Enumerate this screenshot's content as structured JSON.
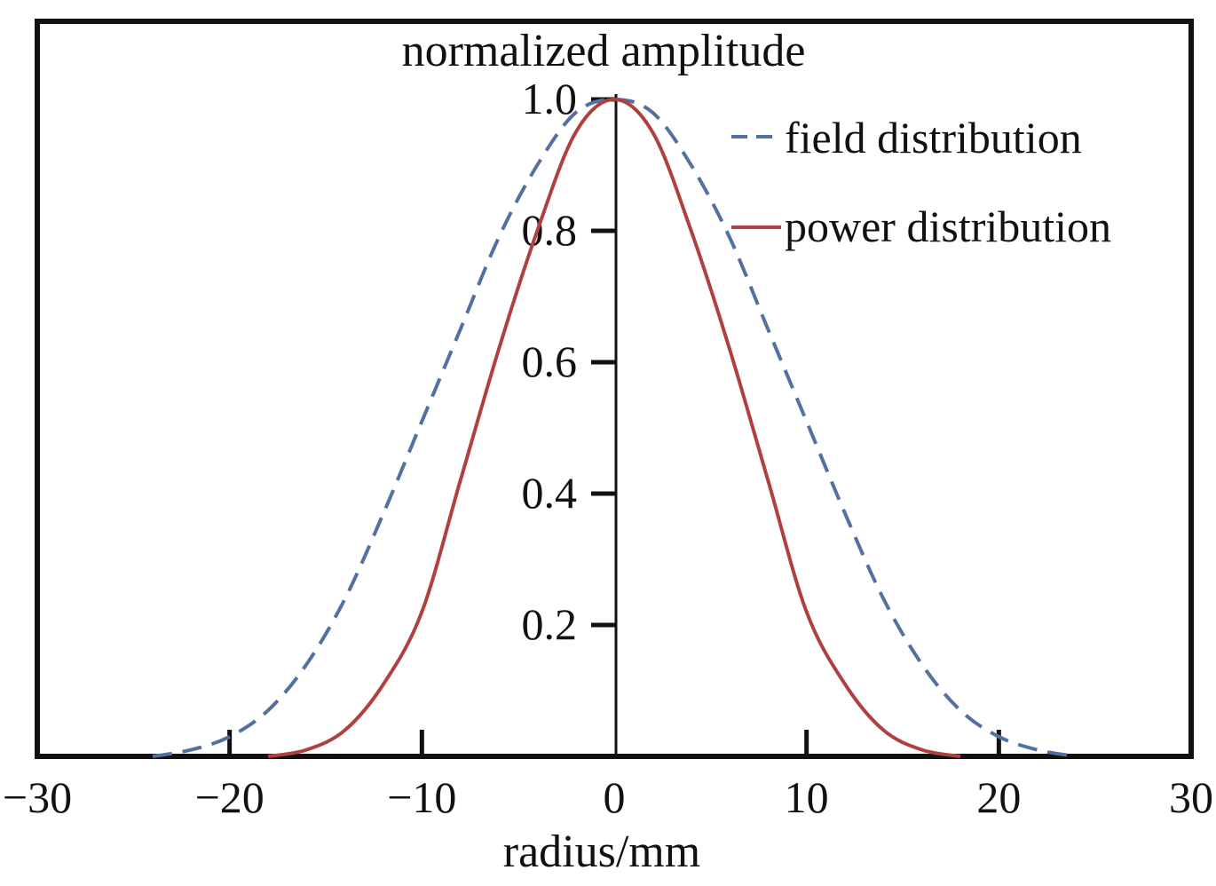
{
  "chart_data": {
    "type": "line",
    "ylabel": "normalized amplitude",
    "xlabel": "radius/mm",
    "xlim": [
      -30,
      30
    ],
    "ylim": [
      0,
      1.0
    ],
    "x_ticks": [
      -30,
      -20,
      -10,
      0,
      10,
      20,
      30
    ],
    "x_tick_labels": [
      "−30",
      "−20",
      "−10",
      "0",
      "10",
      "20",
      "30"
    ],
    "y_ticks": [
      0.2,
      0.4,
      0.6,
      0.8,
      1.0
    ],
    "y_tick_labels": [
      "0.2",
      "0.4",
      "0.6",
      "0.8",
      "1.0"
    ],
    "legend_position": "top-right",
    "grid": false,
    "series": [
      {
        "name": "field distribution",
        "style": "dashed",
        "color": "#5470a0",
        "x": [
          -24,
          -22,
          -20,
          -18,
          -16,
          -14,
          -12,
          -10,
          -8,
          -6,
          -4,
          -2,
          0,
          2,
          4,
          6,
          8,
          10,
          12,
          14,
          16,
          18,
          20,
          22,
          24
        ],
        "y": [
          0.0,
          0.01,
          0.03,
          0.07,
          0.14,
          0.24,
          0.37,
          0.51,
          0.65,
          0.79,
          0.9,
          0.98,
          1.0,
          0.98,
          0.9,
          0.79,
          0.65,
          0.51,
          0.37,
          0.24,
          0.14,
          0.07,
          0.03,
          0.01,
          0.0
        ]
      },
      {
        "name": "power distribution",
        "style": "solid",
        "color": "#b04040",
        "x": [
          -18,
          -16,
          -14,
          -12,
          -10,
          -8,
          -6,
          -4,
          -2,
          0,
          2,
          4,
          6,
          8,
          10,
          12,
          14,
          16,
          18
        ],
        "y": [
          0.0,
          0.01,
          0.04,
          0.11,
          0.22,
          0.42,
          0.62,
          0.8,
          0.95,
          1.0,
          0.95,
          0.8,
          0.62,
          0.42,
          0.22,
          0.11,
          0.04,
          0.01,
          0.0
        ]
      }
    ]
  }
}
